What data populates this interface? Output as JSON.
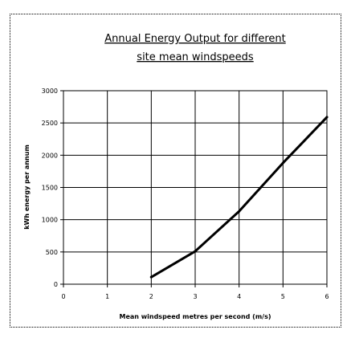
{
  "chart_data": {
    "type": "line",
    "title_lines": [
      "Annual Energy Output for different",
      "site mean windspeeds"
    ],
    "xlabel": "Mean windspeed metres per second (m/s)",
    "ylabel": "kWh energy per annum",
    "xlim": [
      0,
      6
    ],
    "ylim": [
      0,
      3000
    ],
    "x_ticks": [
      "0",
      "1",
      "2",
      "3",
      "4",
      "5",
      "6"
    ],
    "y_ticks": [
      "0",
      "500",
      "1000",
      "1500",
      "2000",
      "2500",
      "3000"
    ],
    "grid": true,
    "series": [
      {
        "x": [
          2,
          3,
          4,
          5,
          6
        ],
        "y": [
          110,
          510,
          1130,
          1880,
          2590
        ],
        "color": "#000000"
      }
    ]
  }
}
